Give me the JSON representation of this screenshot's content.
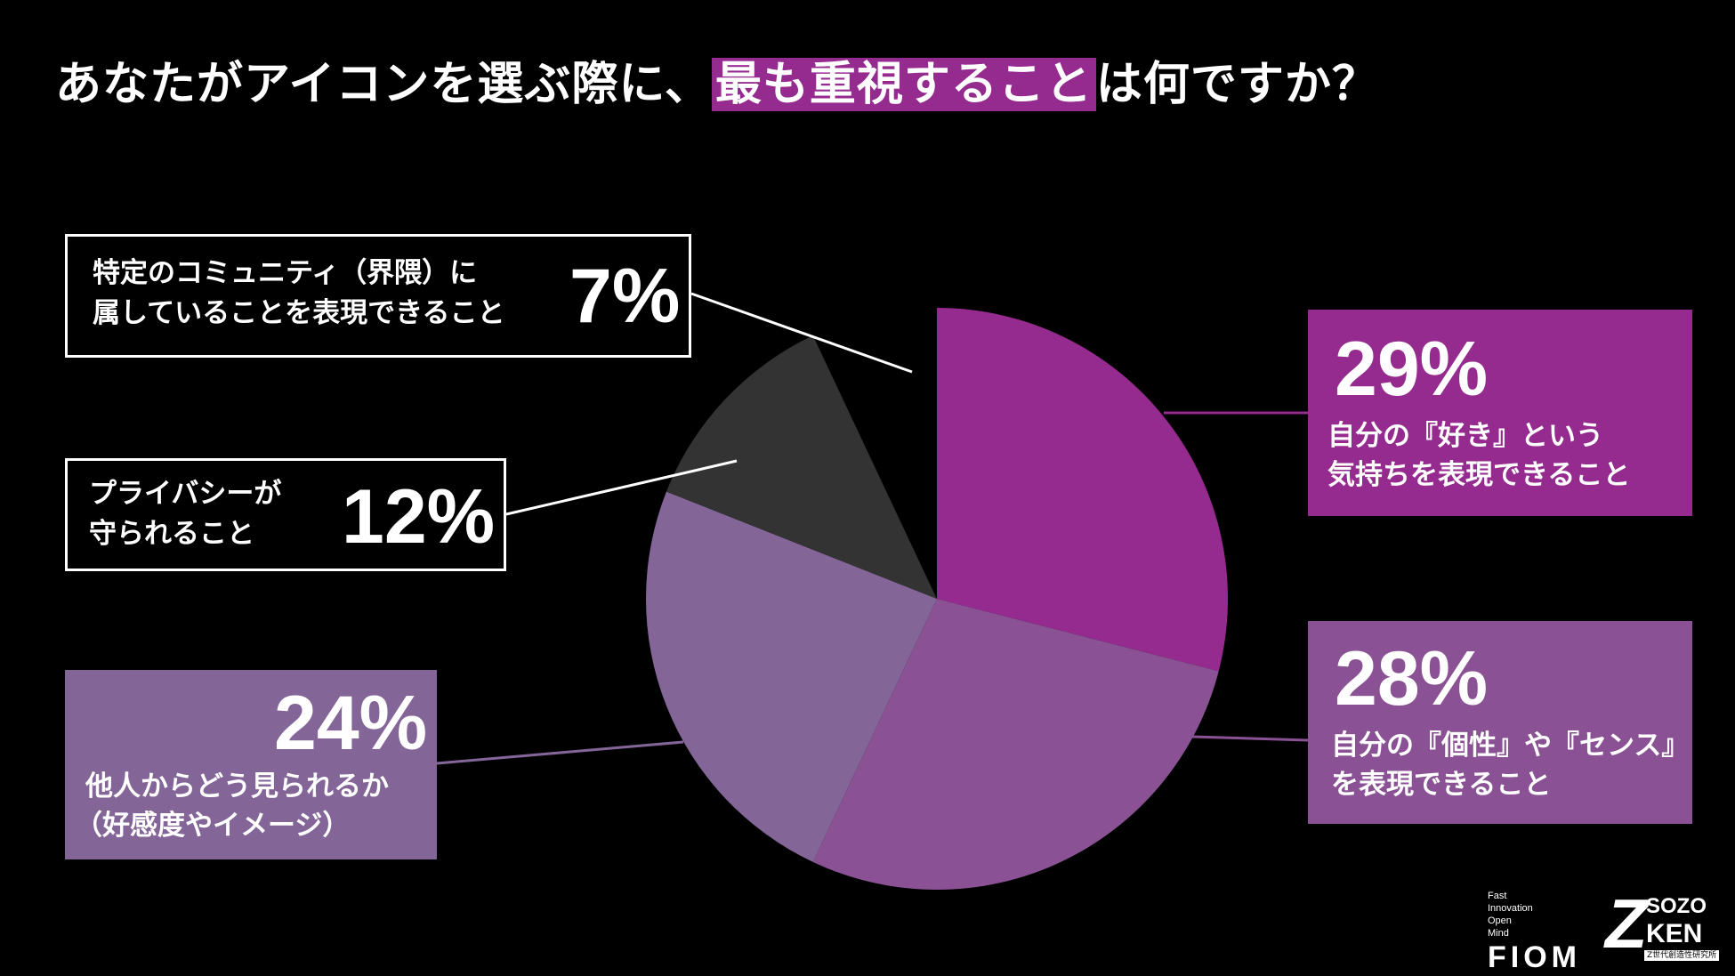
{
  "title": {
    "before": "あなたがアイコンを選ぶ際に、",
    "highlight": "最も重視すること",
    "after": "は何ですか？"
  },
  "chart_data": {
    "type": "pie",
    "start": "12 o'clock, clockwise",
    "slices": [
      {
        "label_line1": "自分の『好き』という",
        "label_line2": "気持ちを表現できること",
        "value": 29,
        "display": "29%",
        "color": "#952a8f"
      },
      {
        "label_line1": "自分の『個性』や『センス』",
        "label_line2": "を表現できること",
        "value": 28,
        "display": "28%",
        "color": "#8a5294"
      },
      {
        "label_line1": "他人からどう見られるか",
        "label_line2": "（好感度やイメージ）",
        "value": 24,
        "display": "24%",
        "color": "#836598"
      },
      {
        "label_line1": "プライバシーが",
        "label_line2": "守られること",
        "value": 12,
        "display": "12%",
        "color": "#333333"
      },
      {
        "label_line1": "特定のコミュニティ（界隈）に",
        "label_line2": "属していることを表現できること",
        "value": 7,
        "display": "7%",
        "color": "#000000"
      }
    ]
  },
  "logos": {
    "fiom_small": [
      "Fast",
      "Innovation",
      "Open",
      "Mind"
    ],
    "fiom_big": "FIOM",
    "sozo_z": "Z",
    "sozo_top": "SOZO",
    "sozo_bottom": "KEN",
    "sozo_sub": "Z世代創造性研究所"
  }
}
